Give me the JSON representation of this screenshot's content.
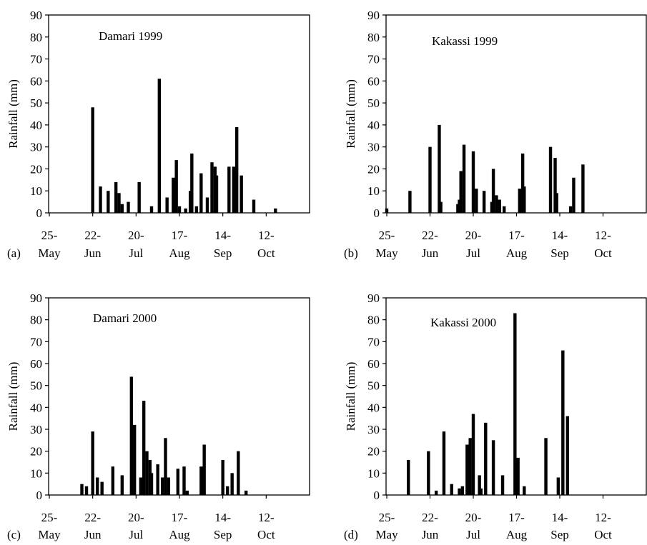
{
  "figure": {
    "x_tick_labels": [
      {
        "top": "25-",
        "bottom": "May"
      },
      {
        "top": "22-",
        "bottom": "Jun"
      },
      {
        "top": "20-",
        "bottom": "Jul"
      },
      {
        "top": "17-",
        "bottom": "Aug"
      },
      {
        "top": "14-",
        "bottom": "Sep"
      },
      {
        "top": "12-",
        "bottom": "Oct"
      }
    ]
  },
  "chart_data": [
    {
      "type": "bar",
      "panel": "(a)",
      "title": "Damari 1999",
      "ylabel": "Rainfall (mm)",
      "xlabel": "",
      "ylim": [
        0,
        90
      ],
      "yticks": [
        0,
        10,
        20,
        30,
        40,
        50,
        60,
        70,
        80,
        90
      ],
      "xlim": [
        "1999-05-25",
        "1999-11-09"
      ],
      "x_ticks": [
        "1999-05-25",
        "1999-06-22",
        "1999-07-20",
        "1999-08-17",
        "1999-09-14",
        "1999-10-12"
      ],
      "grid": false,
      "legend": "none",
      "points": [
        {
          "x": "1999-06-22",
          "y": 48
        },
        {
          "x": "1999-06-27",
          "y": 12
        },
        {
          "x": "1999-07-02",
          "y": 10
        },
        {
          "x": "1999-07-07",
          "y": 14
        },
        {
          "x": "1999-07-09",
          "y": 9
        },
        {
          "x": "1999-07-11",
          "y": 4
        },
        {
          "x": "1999-07-15",
          "y": 5
        },
        {
          "x": "1999-07-22",
          "y": 14
        },
        {
          "x": "1999-07-30",
          "y": 3
        },
        {
          "x": "1999-08-04",
          "y": 61
        },
        {
          "x": "1999-08-09",
          "y": 7
        },
        {
          "x": "1999-08-13",
          "y": 16
        },
        {
          "x": "1999-08-15",
          "y": 24
        },
        {
          "x": "1999-08-17",
          "y": 3
        },
        {
          "x": "1999-08-21",
          "y": 2
        },
        {
          "x": "1999-08-24",
          "y": 10
        },
        {
          "x": "1999-08-25",
          "y": 27
        },
        {
          "x": "1999-08-28",
          "y": 3
        },
        {
          "x": "1999-08-31",
          "y": 18
        },
        {
          "x": "1999-09-04",
          "y": 7
        },
        {
          "x": "1999-09-07",
          "y": 23
        },
        {
          "x": "1999-09-09",
          "y": 21
        },
        {
          "x": "1999-09-10",
          "y": 17
        },
        {
          "x": "1999-09-18",
          "y": 21
        },
        {
          "x": "1999-09-21",
          "y": 21
        },
        {
          "x": "1999-09-23",
          "y": 39
        },
        {
          "x": "1999-09-26",
          "y": 17
        },
        {
          "x": "1999-10-04",
          "y": 6
        },
        {
          "x": "1999-10-18",
          "y": 2
        }
      ]
    },
    {
      "type": "bar",
      "panel": "(b)",
      "title": "Kakassi 1999",
      "ylabel": "Rainfall (mm)",
      "xlabel": "",
      "ylim": [
        0,
        90
      ],
      "yticks": [
        0,
        10,
        20,
        30,
        40,
        50,
        60,
        70,
        80,
        90
      ],
      "xlim": [
        "1999-05-25",
        "1999-11-09"
      ],
      "x_ticks": [
        "1999-05-25",
        "1999-06-22",
        "1999-07-20",
        "1999-08-17",
        "1999-09-14",
        "1999-10-12"
      ],
      "grid": false,
      "legend": "none",
      "points": [
        {
          "x": "1999-05-25",
          "y": 2
        },
        {
          "x": "1999-06-09",
          "y": 10
        },
        {
          "x": "1999-06-22",
          "y": 30
        },
        {
          "x": "1999-06-28",
          "y": 40
        },
        {
          "x": "1999-06-29",
          "y": 5
        },
        {
          "x": "1999-07-10",
          "y": 4
        },
        {
          "x": "1999-07-11",
          "y": 6
        },
        {
          "x": "1999-07-12",
          "y": 19
        },
        {
          "x": "1999-07-14",
          "y": 31
        },
        {
          "x": "1999-07-20",
          "y": 28
        },
        {
          "x": "1999-07-22",
          "y": 11
        },
        {
          "x": "1999-07-27",
          "y": 10
        },
        {
          "x": "1999-08-01",
          "y": 5
        },
        {
          "x": "1999-08-02",
          "y": 20
        },
        {
          "x": "1999-08-04",
          "y": 8
        },
        {
          "x": "1999-08-06",
          "y": 6
        },
        {
          "x": "1999-08-09",
          "y": 3
        },
        {
          "x": "1999-08-19",
          "y": 11
        },
        {
          "x": "1999-08-21",
          "y": 27
        },
        {
          "x": "1999-08-22",
          "y": 12
        },
        {
          "x": "1999-09-08",
          "y": 30
        },
        {
          "x": "1999-09-11",
          "y": 25
        },
        {
          "x": "1999-09-12",
          "y": 9
        },
        {
          "x": "1999-09-21",
          "y": 3
        },
        {
          "x": "1999-09-23",
          "y": 16
        },
        {
          "x": "1999-09-29",
          "y": 22
        }
      ]
    },
    {
      "type": "bar",
      "panel": "(c)",
      "title": "Damari 2000",
      "ylabel": "Rainfall (mm)",
      "xlabel": "",
      "ylim": [
        0,
        90
      ],
      "yticks": [
        0,
        10,
        20,
        30,
        40,
        50,
        60,
        70,
        80,
        90
      ],
      "xlim": [
        "2000-05-25",
        "2000-11-09"
      ],
      "x_ticks": [
        "2000-05-25",
        "2000-06-22",
        "2000-07-20",
        "2000-08-17",
        "2000-09-14",
        "2000-10-12"
      ],
      "grid": false,
      "legend": "none",
      "points": [
        {
          "x": "2000-06-15",
          "y": 5
        },
        {
          "x": "2000-06-18",
          "y": 4
        },
        {
          "x": "2000-06-22",
          "y": 29
        },
        {
          "x": "2000-06-25",
          "y": 8
        },
        {
          "x": "2000-06-28",
          "y": 6
        },
        {
          "x": "2000-07-05",
          "y": 13
        },
        {
          "x": "2000-07-11",
          "y": 9
        },
        {
          "x": "2000-07-17",
          "y": 54
        },
        {
          "x": "2000-07-19",
          "y": 32
        },
        {
          "x": "2000-07-23",
          "y": 8
        },
        {
          "x": "2000-07-25",
          "y": 43
        },
        {
          "x": "2000-07-27",
          "y": 20
        },
        {
          "x": "2000-07-29",
          "y": 16
        },
        {
          "x": "2000-07-30",
          "y": 10
        },
        {
          "x": "2000-08-03",
          "y": 14
        },
        {
          "x": "2000-08-06",
          "y": 8
        },
        {
          "x": "2000-08-08",
          "y": 26
        },
        {
          "x": "2000-08-10",
          "y": 8
        },
        {
          "x": "2000-08-16",
          "y": 12
        },
        {
          "x": "2000-08-20",
          "y": 13
        },
        {
          "x": "2000-08-22",
          "y": 2
        },
        {
          "x": "2000-08-31",
          "y": 13
        },
        {
          "x": "2000-09-02",
          "y": 23
        },
        {
          "x": "2000-09-14",
          "y": 16
        },
        {
          "x": "2000-09-17",
          "y": 4
        },
        {
          "x": "2000-09-20",
          "y": 10
        },
        {
          "x": "2000-09-24",
          "y": 20
        },
        {
          "x": "2000-09-29",
          "y": 2
        }
      ]
    },
    {
      "type": "bar",
      "panel": "(d)",
      "title": "Kakassi 2000",
      "ylabel": "Rainfall (mm)",
      "xlabel": "",
      "ylim": [
        0,
        90
      ],
      "yticks": [
        0,
        10,
        20,
        30,
        40,
        50,
        60,
        70,
        80,
        90
      ],
      "xlim": [
        "2000-05-25",
        "2000-11-09"
      ],
      "x_ticks": [
        "2000-05-25",
        "2000-06-22",
        "2000-07-20",
        "2000-08-17",
        "2000-09-14",
        "2000-10-12"
      ],
      "grid": false,
      "legend": "none",
      "points": [
        {
          "x": "2000-06-08",
          "y": 16
        },
        {
          "x": "2000-06-21",
          "y": 20
        },
        {
          "x": "2000-06-26",
          "y": 2
        },
        {
          "x": "2000-07-01",
          "y": 29
        },
        {
          "x": "2000-07-06",
          "y": 5
        },
        {
          "x": "2000-07-11",
          "y": 3
        },
        {
          "x": "2000-07-13",
          "y": 4
        },
        {
          "x": "2000-07-16",
          "y": 23
        },
        {
          "x": "2000-07-18",
          "y": 26
        },
        {
          "x": "2000-07-20",
          "y": 37
        },
        {
          "x": "2000-07-24",
          "y": 9
        },
        {
          "x": "2000-07-25",
          "y": 3
        },
        {
          "x": "2000-07-28",
          "y": 33
        },
        {
          "x": "2000-08-02",
          "y": 25
        },
        {
          "x": "2000-08-08",
          "y": 9
        },
        {
          "x": "2000-08-16",
          "y": 83
        },
        {
          "x": "2000-08-18",
          "y": 17
        },
        {
          "x": "2000-08-22",
          "y": 4
        },
        {
          "x": "2000-09-05",
          "y": 26
        },
        {
          "x": "2000-09-13",
          "y": 8
        },
        {
          "x": "2000-09-16",
          "y": 66
        },
        {
          "x": "2000-09-19",
          "y": 36
        }
      ]
    }
  ]
}
